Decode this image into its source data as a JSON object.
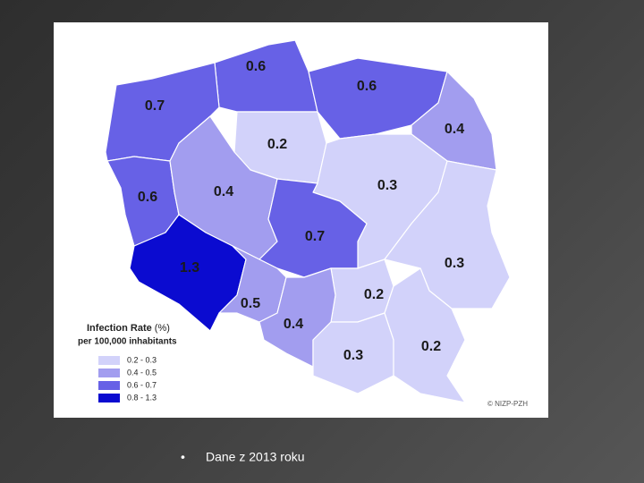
{
  "map": {
    "regions": [
      "0.6",
      "0.6",
      "0.7",
      "0.4",
      "0.2",
      "0.3",
      "0.6",
      "0.4",
      "0.7",
      "0.3",
      "1.3",
      "0.2",
      "0.5",
      "0.4",
      "0.3",
      "0.2"
    ],
    "legend": {
      "title": "Infection Rate",
      "title_unit": "(%)",
      "subtitle": "per 100,000 inhabitants",
      "classes": [
        "0.2 - 0.3",
        "0.4 - 0.5",
        "0.6 - 0.7",
        "0.8 - 1.3"
      ]
    },
    "credit": "© NIZP-PZH"
  },
  "slide": {
    "bullet": "•",
    "caption": "Dane z 2013 roku"
  }
}
